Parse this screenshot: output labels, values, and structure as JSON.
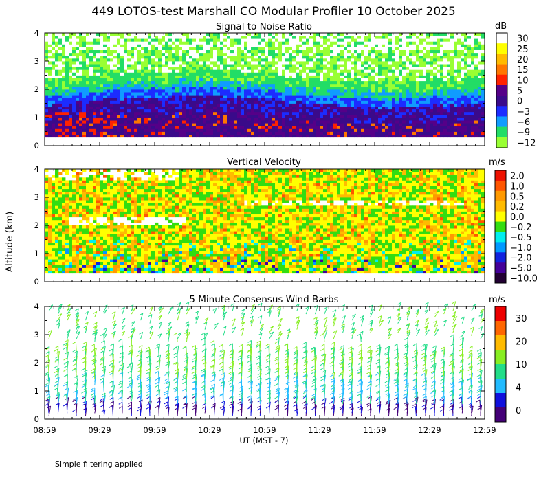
{
  "figure": {
    "title": "449 LOTOS-test Marshall CO Modular Profiler 10 October 2025",
    "y_label": "Altitude (km)",
    "x_label": "UT  (MST - 7)",
    "footnote": "Simple filtering applied"
  },
  "chart_data": [
    {
      "type": "heatmap",
      "title": "Signal to Noise Ratio",
      "xlabel": "UT  (MST - 7)",
      "ylabel": "Altitude (km)",
      "x_ticks": [
        "08:59",
        "09:29",
        "09:59",
        "10:29",
        "10:59",
        "11:29",
        "11:59",
        "12:29",
        "12:59"
      ],
      "y_ticks": [
        "0",
        "1",
        "2",
        "3",
        "4"
      ],
      "ylim": [
        0,
        4
      ],
      "data_height_range_km": [
        0.3,
        4.0
      ],
      "colorbar": {
        "unit": "dB",
        "labels": [
          "30",
          "25",
          "20",
          "15",
          "10",
          "5",
          "0",
          "−3",
          "−6",
          "−9",
          "−12"
        ],
        "colors": [
          "#ffffff",
          "#ffff00",
          "#ffbb00",
          "#ff7700",
          "#ff2200",
          "#550088",
          "#3a0a8a",
          "#1c2cff",
          "#109cff",
          "#22dd66",
          "#99ff33"
        ]
      }
    },
    {
      "type": "heatmap",
      "title": "Vertical Velocity",
      "xlabel": "UT  (MST - 7)",
      "ylabel": "Altitude (km)",
      "y_ticks": [
        "0",
        "1",
        "2",
        "3",
        "4"
      ],
      "ylim": [
        0,
        4
      ],
      "data_height_range_km": [
        0.3,
        4.0
      ],
      "colorbar": {
        "unit": "m/s",
        "labels": [
          "2.0",
          "1.0",
          "0.5",
          "0.2",
          "0.0",
          "−0.2",
          "−0.5",
          "−1.0",
          "−2.0",
          "−5.0",
          "−10.0"
        ],
        "colors": [
          "#ee1100",
          "#ff5500",
          "#ff9900",
          "#ffbb00",
          "#ffff00",
          "#33dd11",
          "#00eeee",
          "#0099ff",
          "#1122dd",
          "#440099",
          "#220033"
        ]
      }
    },
    {
      "type": "scatter",
      "title": "5 Minute Consensus Wind Barbs",
      "xlabel": "UT  (MST - 7)",
      "ylabel": "Altitude (km)",
      "y_ticks": [
        "0",
        "1",
        "2",
        "3",
        "4"
      ],
      "ylim": [
        0,
        4
      ],
      "colorbar": {
        "unit": "m/s",
        "labels": [
          "30",
          "20",
          "10",
          "4",
          "0"
        ],
        "colors": [
          "#ee0000",
          "#ff6600",
          "#ffbb00",
          "#88ee22",
          "#22dd88",
          "#22bbff",
          "#1010dd",
          "#440077"
        ]
      }
    }
  ]
}
